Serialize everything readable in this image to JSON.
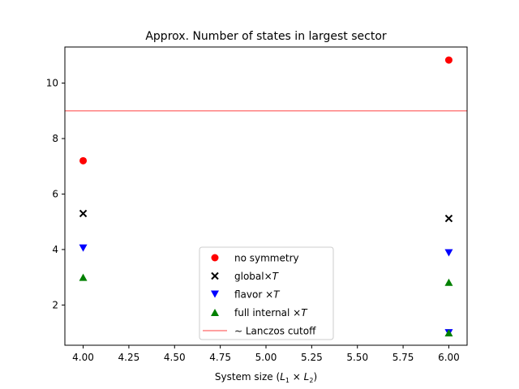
{
  "chart_data": {
    "type": "scatter",
    "title": "Approx. Number of states in largest sector",
    "xlabel_parts": [
      "System size (",
      "L",
      "1",
      " × ",
      "L",
      "2",
      ")"
    ],
    "ylabel": "",
    "xlim": [
      3.9,
      6.1
    ],
    "ylim": [
      0.55,
      11.3
    ],
    "x_ticks": [
      4.0,
      4.25,
      4.5,
      4.75,
      5.0,
      5.25,
      5.5,
      5.75,
      6.0
    ],
    "x_tick_labels": [
      "4.00",
      "4.25",
      "4.50",
      "4.75",
      "5.00",
      "5.25",
      "5.50",
      "5.75",
      "6.00"
    ],
    "y_ticks": [
      2,
      4,
      6,
      8,
      10
    ],
    "y_tick_labels": [
      "2",
      "4",
      "6",
      "8",
      "10"
    ],
    "grid": false,
    "legend_position": "lower-center",
    "series": [
      {
        "key": "no-symmetry",
        "legend": [
          "no symmetry"
        ],
        "marker": "circle",
        "color": "#ff0000",
        "points": [
          [
            4,
            7.2
          ],
          [
            6,
            10.83
          ]
        ]
      },
      {
        "key": "global-t",
        "legend": [
          "global×",
          "T"
        ],
        "marker": "x",
        "color": "#000000",
        "points": [
          [
            4,
            5.3
          ],
          [
            6,
            5.12
          ]
        ]
      },
      {
        "key": "flavor-t",
        "legend": [
          "flavor ×",
          "T"
        ],
        "marker": "triangle-down",
        "color": "#0000ff",
        "points": [
          [
            4,
            4.05
          ],
          [
            6,
            3.88
          ],
          [
            6,
            1.0
          ]
        ]
      },
      {
        "key": "full-internal-t",
        "legend": [
          "full internal ×",
          "T"
        ],
        "marker": "triangle-up",
        "color": "#008000",
        "points": [
          [
            4,
            3.0
          ],
          [
            6,
            2.82
          ],
          [
            6,
            1.0
          ]
        ]
      }
    ],
    "reference_lines": [
      {
        "key": "lanczos-cutoff",
        "legend": [
          "∼ Lanczos cutoff"
        ],
        "y": 9.0,
        "color": "#ff8080"
      }
    ]
  }
}
